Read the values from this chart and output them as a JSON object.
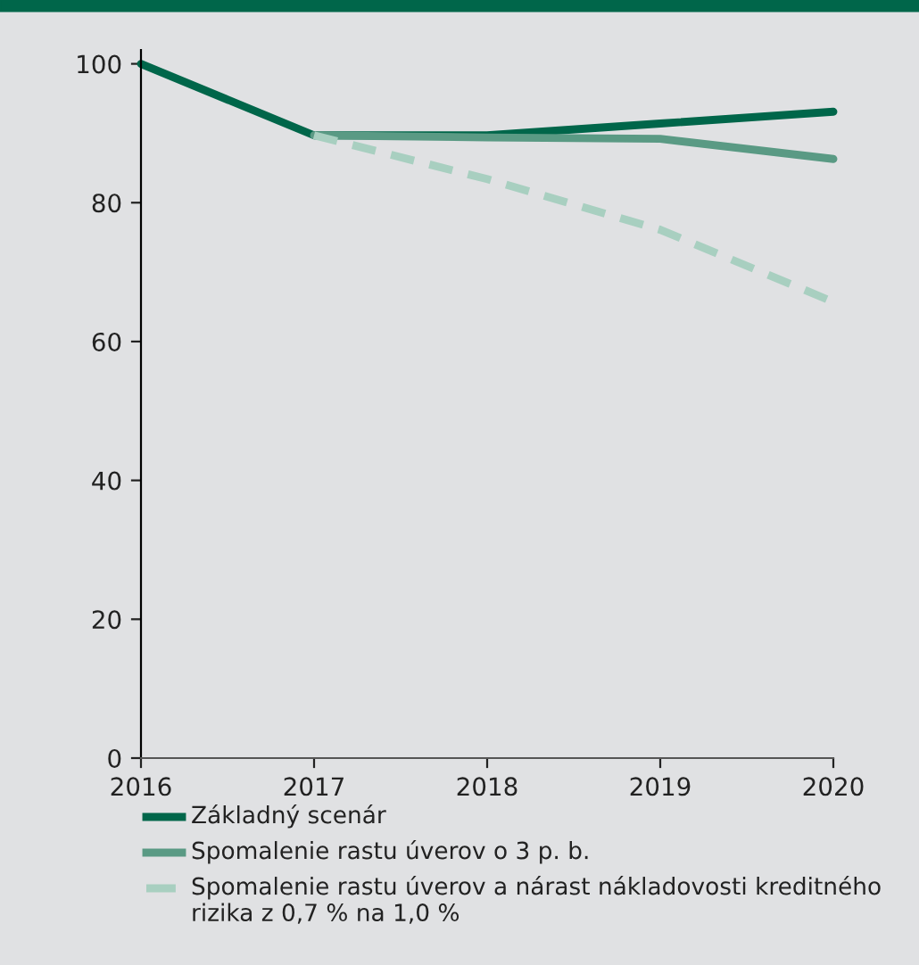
{
  "chart_data": {
    "type": "line",
    "x": [
      2016,
      2017,
      2018,
      2019,
      2020
    ],
    "series": [
      {
        "name": "Základný scenár",
        "color": "#00664a",
        "values": [
          100,
          89.7,
          89.7,
          91.4,
          93.1
        ]
      },
      {
        "name": "Spomalenie rastu úverov o 3 p. b.",
        "color": "#5a9a84",
        "values": [
          null,
          89.7,
          89.4,
          89.2,
          86.3
        ]
      },
      {
        "name": "Spomalenie rastu úverov a nárast nákladovosti kreditného rizika z 0,7 % na 1,0 %",
        "color": "#a8cfc0",
        "line_style": "dashed",
        "values": [
          null,
          89.7,
          83.4,
          76.1,
          65.7
        ]
      }
    ],
    "xlim": [
      2016,
      2020
    ],
    "xticks": [
      2016,
      2017,
      2018,
      2019,
      2020
    ],
    "ylim": [
      0,
      102
    ],
    "yticks": [
      0,
      20,
      40,
      60,
      80,
      100
    ],
    "grid": false,
    "legend": "bottom",
    "marker": "none",
    "line_style": "solid"
  }
}
